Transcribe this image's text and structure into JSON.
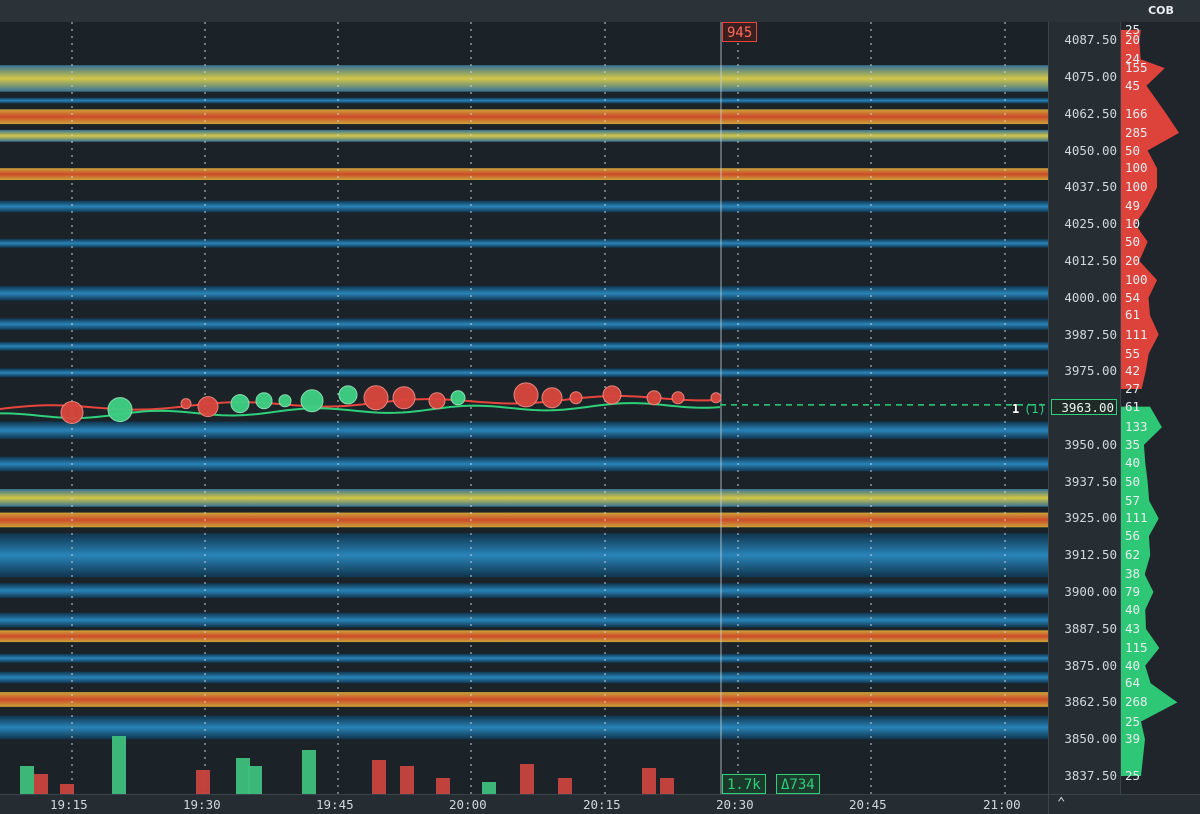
{
  "header": {
    "cob_label": "COB"
  },
  "price_axis": {
    "ticks": [
      "4087.50",
      "4075.00",
      "4062.50",
      "4050.00",
      "4037.50",
      "4025.00",
      "4012.50",
      "4000.00",
      "3987.50",
      "3975.00",
      "3950.00",
      "3937.50",
      "3925.00",
      "3912.50",
      "3900.00",
      "3887.50",
      "3875.00",
      "3862.50",
      "3850.00",
      "3837.50"
    ],
    "current_price": "3963.00"
  },
  "time_axis": {
    "labels": [
      "19:15",
      "19:30",
      "19:45",
      "20:00",
      "20:15",
      "20:30",
      "20:45",
      "21:00"
    ]
  },
  "chart_data": {
    "type": "heatmap",
    "y_range": [
      3837.5,
      4093
    ],
    "ask_sizes": [
      {
        "price": "4091",
        "size": "25"
      },
      {
        "price": "4087.5",
        "size": "20"
      },
      {
        "price": "4081",
        "size": "24"
      },
      {
        "price": "4078",
        "size": "155"
      },
      {
        "price": "4072",
        "size": "45"
      },
      {
        "price": "4062.5",
        "size": "166"
      },
      {
        "price": "4056",
        "size": "285"
      },
      {
        "price": "4050",
        "size": "50"
      },
      {
        "price": "4044",
        "size": "100"
      },
      {
        "price": "4037.5",
        "size": "100"
      },
      {
        "price": "4031",
        "size": "49"
      },
      {
        "price": "4025",
        "size": "10"
      },
      {
        "price": "4019",
        "size": "50"
      },
      {
        "price": "4012.5",
        "size": "20"
      },
      {
        "price": "4006",
        "size": "100"
      },
      {
        "price": "4000",
        "size": "54"
      },
      {
        "price": "3994",
        "size": "61"
      },
      {
        "price": "3987.5",
        "size": "111"
      },
      {
        "price": "3981",
        "size": "55"
      },
      {
        "price": "3975",
        "size": "42"
      },
      {
        "price": "3969",
        "size": "27"
      }
    ],
    "bid_sizes": [
      {
        "price": "3963",
        "size": "61"
      },
      {
        "price": "3956",
        "size": "133"
      },
      {
        "price": "3950",
        "size": "35"
      },
      {
        "price": "3944",
        "size": "40"
      },
      {
        "price": "3937.5",
        "size": "50"
      },
      {
        "price": "3931",
        "size": "57"
      },
      {
        "price": "3925",
        "size": "111"
      },
      {
        "price": "3919",
        "size": "56"
      },
      {
        "price": "3912.5",
        "size": "62"
      },
      {
        "price": "3906",
        "size": "38"
      },
      {
        "price": "3900",
        "size": "79"
      },
      {
        "price": "3894",
        "size": "40"
      },
      {
        "price": "3887.5",
        "size": "43"
      },
      {
        "price": "3881",
        "size": "115"
      },
      {
        "price": "3875",
        "size": "40"
      },
      {
        "price": "3869",
        "size": "64"
      },
      {
        "price": "3862.5",
        "size": "268"
      },
      {
        "price": "3856",
        "size": "25"
      },
      {
        "price": "3850",
        "size": "39"
      },
      {
        "price": "3837.5",
        "size": "25"
      }
    ],
    "cursor_label": "945",
    "cursor_time": "20:30",
    "volume_label": "1.7k",
    "delta_label": "Δ734",
    "last_trade_label": "1",
    "last_trade_count": "(1)",
    "colors": {
      "ask": "#e8453c",
      "bid": "#2fd07a",
      "heat_low": "#1f6fa8",
      "heat_mid": "#e8d24a",
      "heat_high": "#e35a2a"
    }
  }
}
